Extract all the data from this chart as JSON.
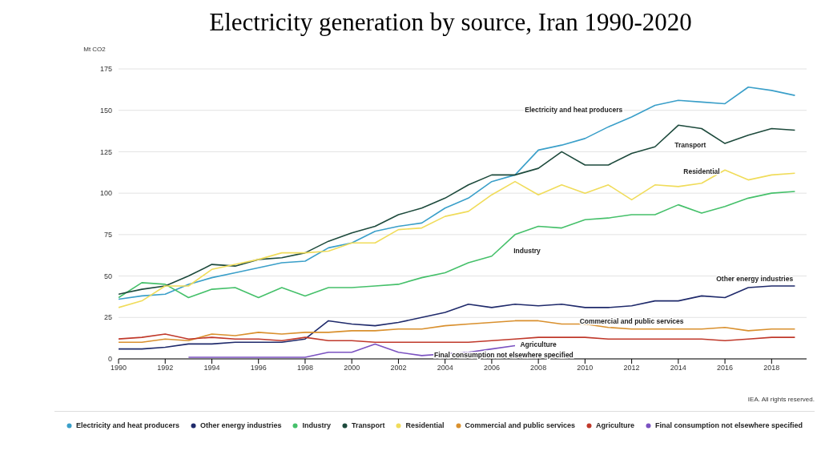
{
  "chart_data": {
    "type": "line",
    "title": "Electricity generation by source, Iran 1990-2020",
    "ylabel": "Mt CO2",
    "x": [
      1990,
      1991,
      1992,
      1993,
      1994,
      1995,
      1996,
      1997,
      1998,
      1999,
      2000,
      2001,
      2002,
      2003,
      2004,
      2005,
      2006,
      2007,
      2008,
      2009,
      2010,
      2011,
      2012,
      2013,
      2014,
      2015,
      2016,
      2017,
      2018,
      2019
    ],
    "series": [
      {
        "name": "Electricity and heat producers",
        "color": "#3a9fc9",
        "values": [
          36,
          38,
          39,
          45,
          49,
          52,
          55,
          58,
          59,
          67,
          70,
          77,
          80,
          82,
          91,
          97,
          107,
          111,
          126,
          129,
          133,
          140,
          146,
          153,
          156,
          155,
          154,
          164,
          162,
          159
        ]
      },
      {
        "name": "Other energy industries",
        "color": "#1f2a6b",
        "values": [
          6,
          6,
          7,
          9,
          9,
          10,
          10,
          10,
          12,
          23,
          21,
          20,
          22,
          25,
          28,
          33,
          31,
          33,
          32,
          33,
          31,
          31,
          32,
          35,
          35,
          38,
          37,
          43,
          44,
          44
        ]
      },
      {
        "name": "Industry",
        "color": "#45c06a",
        "values": [
          37,
          46,
          45,
          37,
          42,
          43,
          37,
          43,
          38,
          43,
          43,
          44,
          45,
          49,
          52,
          58,
          62,
          75,
          80,
          79,
          84,
          85,
          87,
          87,
          93,
          88,
          92,
          97,
          100,
          101
        ]
      },
      {
        "name": "Transport",
        "color": "#1d4a3c",
        "values": [
          39,
          42,
          44,
          50,
          57,
          56,
          60,
          61,
          64,
          71,
          76,
          80,
          87,
          91,
          97,
          105,
          111,
          111,
          115,
          125,
          117,
          117,
          124,
          128,
          141,
          139,
          130,
          135,
          139,
          138
        ]
      },
      {
        "name": "Residential",
        "color": "#f0dc5a",
        "values": [
          31,
          35,
          44,
          44,
          54,
          57,
          60,
          64,
          64,
          65,
          70,
          70,
          78,
          79,
          86,
          89,
          99,
          107,
          99,
          105,
          100,
          105,
          96,
          105,
          104,
          106,
          114,
          108,
          111,
          112
        ]
      },
      {
        "name": "Commercial and public services",
        "color": "#d9902e",
        "values": [
          10,
          10,
          12,
          11,
          15,
          14,
          16,
          15,
          16,
          16,
          17,
          17,
          18,
          18,
          20,
          21,
          22,
          23,
          23,
          21,
          21,
          19,
          18,
          18,
          18,
          18,
          19,
          17,
          18,
          18
        ]
      },
      {
        "name": "Agriculture",
        "color": "#c0392b",
        "values": [
          12,
          13,
          15,
          12,
          13,
          12,
          12,
          11,
          13,
          11,
          11,
          10,
          10,
          10,
          10,
          10,
          11,
          12,
          13,
          13,
          13,
          12,
          12,
          12,
          12,
          12,
          11,
          12,
          13,
          13
        ]
      },
      {
        "name": "Final consumption not elsewhere specified",
        "color": "#7b52c1",
        "values": [
          null,
          null,
          null,
          1,
          1,
          1,
          1,
          1,
          1,
          4,
          4,
          9,
          4,
          2,
          3,
          4,
          6,
          8,
          null,
          null,
          null,
          null,
          null,
          null,
          null,
          null,
          null,
          null,
          null,
          null
        ]
      }
    ],
    "xlim": [
      1990,
      2019.5
    ],
    "xticks": [
      1990,
      1992,
      1994,
      1996,
      1998,
      2000,
      2002,
      2004,
      2006,
      2008,
      2010,
      2012,
      2014,
      2016,
      2018
    ],
    "ylim": [
      0,
      175
    ],
    "yticks": [
      0,
      25,
      50,
      75,
      100,
      125,
      150,
      175
    ],
    "grid": "y",
    "legend": "bottom",
    "marker": "none",
    "line_style": "solid",
    "annotations": [
      "IEA. All rights reserved."
    ]
  }
}
